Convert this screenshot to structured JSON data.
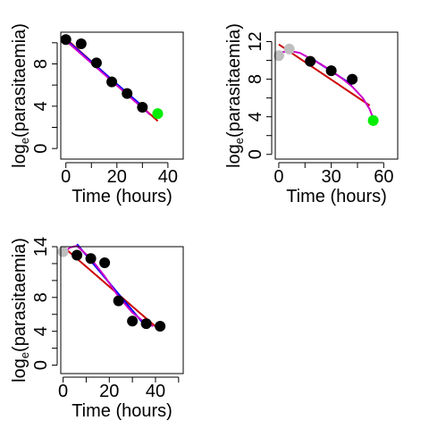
{
  "chart_data": [
    {
      "type": "scatter",
      "xlabel": "Time (hours)",
      "ylabel_main": "log",
      "ylabel_sub": "e",
      "ylabel_rest": "(parasitaemia)",
      "xlim": [
        -2,
        46
      ],
      "ylim": [
        -1,
        11
      ],
      "xticks": [
        0,
        10,
        20,
        30,
        40
      ],
      "xtick_labels": [
        "0",
        "",
        "20",
        "",
        "40"
      ],
      "yticks": [
        0,
        2,
        4,
        6,
        8,
        10
      ],
      "ytick_labels": [
        "0",
        "",
        "4",
        "",
        "8",
        ""
      ],
      "points_black": {
        "x": [
          0,
          6,
          12,
          18,
          24,
          30
        ],
        "y": [
          10.3,
          9.9,
          8.1,
          6.3,
          5.2,
          3.9
        ]
      },
      "points_green": {
        "x": [
          36
        ],
        "y": [
          3.3
        ]
      },
      "points_gray": {
        "x": [],
        "y": []
      },
      "lines": [
        {
          "color": "#cc0000",
          "x": [
            0,
            36
          ],
          "y": [
            10.4,
            2.6
          ]
        },
        {
          "color": "#0000ff",
          "x": [
            0,
            30
          ],
          "y": [
            10.3,
            4.0
          ]
        },
        {
          "color": "#cc00cc",
          "x": [
            0,
            33
          ],
          "y": [
            10.2,
            3.2
          ]
        }
      ]
    },
    {
      "type": "scatter",
      "xlabel": "Time (hours)",
      "ylabel_main": "log",
      "ylabel_sub": "e",
      "ylabel_rest": "(parasitaemia)",
      "xlim": [
        -2,
        68
      ],
      "ylim": [
        -0.5,
        13
      ],
      "xticks": [
        0,
        15,
        30,
        45,
        60
      ],
      "xtick_labels": [
        "0",
        "",
        "30",
        "",
        "60"
      ],
      "yticks": [
        0,
        2,
        4,
        6,
        8,
        10,
        12
      ],
      "ytick_labels": [
        "0",
        "",
        "4",
        "",
        "8",
        "",
        "12"
      ],
      "points_black": {
        "x": [
          18,
          30,
          42
        ],
        "y": [
          9.9,
          8.9,
          8.0
        ]
      },
      "points_green": {
        "x": [
          54
        ],
        "y": [
          3.6
        ]
      },
      "points_gray": {
        "x": [
          0,
          6
        ],
        "y": [
          10.5,
          11.2
        ]
      },
      "lines": [
        {
          "color": "#cc0000",
          "x": [
            0,
            52
          ],
          "y": [
            11.7,
            5.2
          ]
        },
        {
          "color": "#0000ff",
          "x": [
            18,
            42
          ],
          "y": [
            10.3,
            7.4
          ]
        },
        {
          "color": "#cc00cc",
          "x": [
            0,
            6,
            12,
            18,
            24,
            30,
            36,
            42,
            48,
            52,
            54
          ],
          "y": [
            10.8,
            11.0,
            10.8,
            10.2,
            9.6,
            8.9,
            8.1,
            7.2,
            6.0,
            4.8,
            3.8
          ]
        }
      ]
    },
    {
      "type": "scatter",
      "xlabel": "Time (hours)",
      "ylabel_main": "log",
      "ylabel_sub": "e",
      "ylabel_rest": "(parasitaemia)",
      "xlim": [
        -1,
        52
      ],
      "ylim": [
        -1,
        14
      ],
      "xticks": [
        0,
        10,
        20,
        30,
        40,
        50
      ],
      "xtick_labels": [
        "0",
        "",
        "20",
        "",
        "40",
        ""
      ],
      "yticks": [
        0,
        2,
        4,
        6,
        8,
        10,
        12,
        14
      ],
      "ytick_labels": [
        "0",
        "",
        "4",
        "",
        "8",
        "",
        "",
        "14"
      ],
      "points_black": {
        "x": [
          6,
          12,
          18,
          24,
          30,
          36,
          42
        ],
        "y": [
          13.0,
          12.6,
          12.1,
          7.6,
          5.2,
          4.9,
          4.6
        ]
      },
      "points_green": {
        "x": [],
        "y": []
      },
      "points_gray": {
        "x": [
          0
        ],
        "y": [
          13.4
        ]
      },
      "lines": [
        {
          "color": "#cc0000",
          "x": [
            0,
            42
          ],
          "y": [
            14.0,
            4.1
          ]
        },
        {
          "color": "#0000ff",
          "x": [
            6,
            36
          ],
          "y": [
            14.3,
            4.5
          ]
        },
        {
          "color": "#cc00cc",
          "x": [
            0,
            3,
            6,
            12,
            18,
            24,
            30,
            36,
            39
          ],
          "y": [
            13.2,
            13.9,
            14.1,
            12.6,
            10.5,
            8.1,
            6.2,
            4.9,
            4.6
          ]
        }
      ]
    }
  ]
}
